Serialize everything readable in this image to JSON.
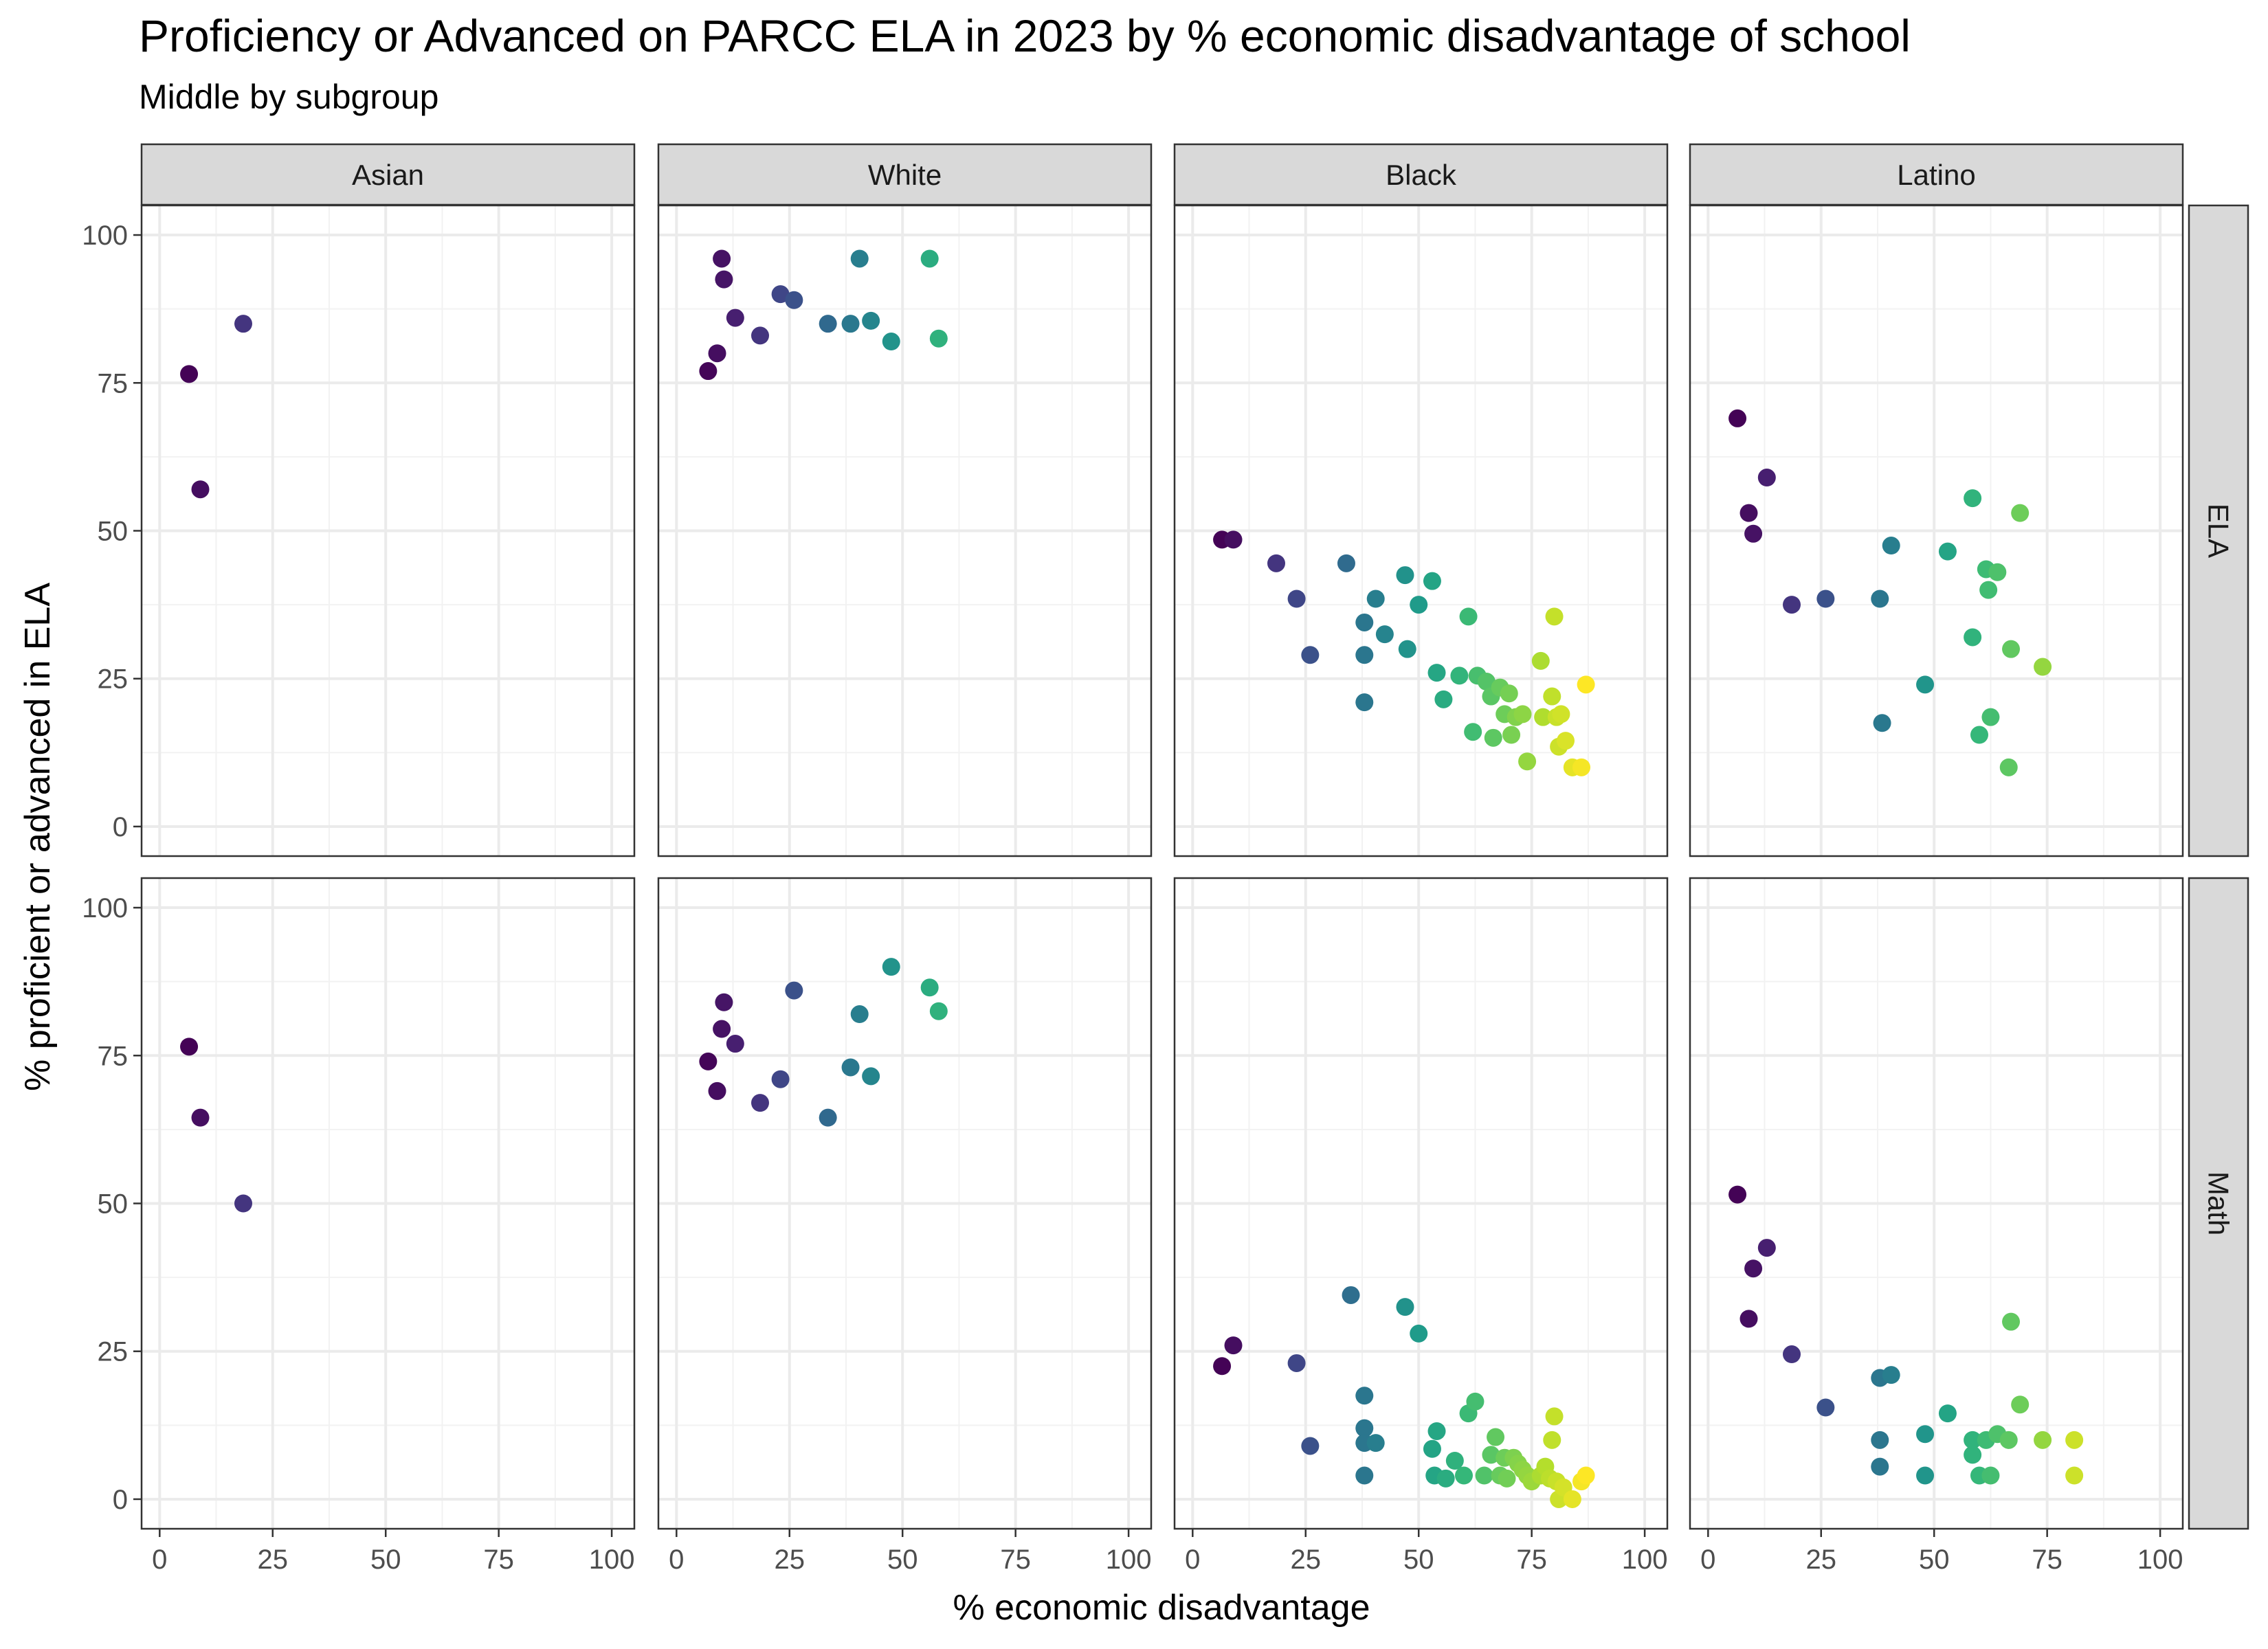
{
  "chart_data": {
    "type": "scatter",
    "title": "Proficiency or Advanced on PARCC ELA in 2023 by % economic disadvantage of school",
    "subtitle": "Middle by subgroup",
    "xlabel": "% economic disadvantage",
    "ylabel": "% proficient or advanced in ELA",
    "xlim": [
      -4,
      105
    ],
    "ylim": [
      -5,
      105
    ],
    "x_ticks": [
      "0",
      "25",
      "50",
      "75",
      "100"
    ],
    "y_ticks": [
      "0",
      "25",
      "50",
      "75",
      "100"
    ],
    "grid": true,
    "color_scale": "viridis by % economic disadvantage",
    "columns": [
      "Asian",
      "White",
      "Black",
      "Latino"
    ],
    "rows": [
      "ELA",
      "Math"
    ],
    "panels": [
      {
        "column": "Asian",
        "row": "ELA",
        "points": [
          [
            6.5,
            76.5
          ],
          [
            9,
            57
          ],
          [
            18.5,
            85
          ]
        ]
      },
      {
        "column": "White",
        "row": "ELA",
        "points": [
          [
            7,
            77
          ],
          [
            9,
            80
          ],
          [
            10,
            96
          ],
          [
            10.5,
            92.5
          ],
          [
            13,
            86
          ],
          [
            18.5,
            83
          ],
          [
            23,
            90
          ],
          [
            26,
            89
          ],
          [
            33.5,
            85
          ],
          [
            38.5,
            85
          ],
          [
            40.5,
            96
          ],
          [
            43,
            85.5
          ],
          [
            47.5,
            82
          ],
          [
            56,
            96
          ],
          [
            58,
            82.5
          ]
        ]
      },
      {
        "column": "Black",
        "row": "ELA",
        "points": [
          [
            6.5,
            48.5
          ],
          [
            9,
            48.5
          ],
          [
            18.5,
            44.5
          ],
          [
            23,
            38.5
          ],
          [
            26,
            29
          ],
          [
            34,
            44.5
          ],
          [
            38,
            34.5
          ],
          [
            38,
            29
          ],
          [
            38,
            21
          ],
          [
            40.5,
            38.5
          ],
          [
            42.5,
            32.5
          ],
          [
            47,
            42.5
          ],
          [
            47.5,
            30
          ],
          [
            50,
            37.5
          ],
          [
            53,
            41.5
          ],
          [
            54,
            26
          ],
          [
            55.5,
            21.5
          ],
          [
            59,
            25.5
          ],
          [
            61,
            35.5
          ],
          [
            62,
            16
          ],
          [
            63,
            25.5
          ],
          [
            65,
            24.5
          ],
          [
            66,
            22
          ],
          [
            66.5,
            15
          ],
          [
            68,
            23.5
          ],
          [
            69,
            19
          ],
          [
            70,
            22.5
          ],
          [
            70.5,
            15.5
          ],
          [
            71.5,
            18.5
          ],
          [
            73,
            19
          ],
          [
            74,
            11
          ],
          [
            77,
            28
          ],
          [
            77.5,
            18.5
          ],
          [
            79.5,
            22
          ],
          [
            80,
            35.5
          ],
          [
            80.5,
            18.5
          ],
          [
            81,
            13.5
          ],
          [
            81.5,
            19
          ],
          [
            82.5,
            14.5
          ],
          [
            84,
            10
          ],
          [
            86,
            10
          ],
          [
            87,
            24
          ]
        ]
      },
      {
        "column": "Latino",
        "row": "ELA",
        "points": [
          [
            6.5,
            69
          ],
          [
            9,
            53
          ],
          [
            10,
            49.5
          ],
          [
            13,
            59
          ],
          [
            18.5,
            37.5
          ],
          [
            26,
            38.5
          ],
          [
            38,
            38.5
          ],
          [
            38.5,
            17.5
          ],
          [
            40.5,
            47.5
          ],
          [
            48,
            24
          ],
          [
            53,
            46.5
          ],
          [
            58.5,
            55.5
          ],
          [
            58.5,
            32
          ],
          [
            60,
            15.5
          ],
          [
            61.5,
            43.5
          ],
          [
            62,
            40
          ],
          [
            62.5,
            18.5
          ],
          [
            64,
            43
          ],
          [
            66.5,
            10
          ],
          [
            67,
            30
          ],
          [
            69,
            53
          ],
          [
            74,
            27
          ]
        ]
      },
      {
        "column": "Asian",
        "row": "Math",
        "points": [
          [
            6.5,
            76.5
          ],
          [
            9,
            64.5
          ],
          [
            18.5,
            50
          ]
        ]
      },
      {
        "column": "White",
        "row": "Math",
        "points": [
          [
            7,
            74
          ],
          [
            9,
            69
          ],
          [
            10,
            79.5
          ],
          [
            10.5,
            84
          ],
          [
            13,
            77
          ],
          [
            18.5,
            67
          ],
          [
            23,
            71
          ],
          [
            26,
            86
          ],
          [
            33.5,
            64.5
          ],
          [
            38.5,
            73
          ],
          [
            40.5,
            82
          ],
          [
            43,
            71.5
          ],
          [
            47.5,
            90
          ],
          [
            56,
            86.5
          ],
          [
            58,
            82.5
          ]
        ]
      },
      {
        "column": "Black",
        "row": "Math",
        "points": [
          [
            6.5,
            22.5
          ],
          [
            9,
            26
          ],
          [
            23,
            23
          ],
          [
            26,
            9
          ],
          [
            35,
            34.5
          ],
          [
            38,
            17.5
          ],
          [
            38,
            12
          ],
          [
            38,
            9.5
          ],
          [
            38,
            4
          ],
          [
            40.5,
            9.5
          ],
          [
            47,
            32.5
          ],
          [
            50,
            28
          ],
          [
            53,
            8.5
          ],
          [
            53.5,
            4
          ],
          [
            54,
            11.5
          ],
          [
            56,
            3.5
          ],
          [
            58,
            6.5
          ],
          [
            60,
            4
          ],
          [
            61,
            14.5
          ],
          [
            62.5,
            16.5
          ],
          [
            64.5,
            4
          ],
          [
            66,
            7.5
          ],
          [
            67,
            10.5
          ],
          [
            68,
            4
          ],
          [
            69,
            7
          ],
          [
            69.5,
            3.5
          ],
          [
            71,
            7
          ],
          [
            72,
            6
          ],
          [
            73,
            5
          ],
          [
            74,
            4
          ],
          [
            75,
            3
          ],
          [
            77,
            4
          ],
          [
            78,
            5.5
          ],
          [
            79,
            3.5
          ],
          [
            79.5,
            10
          ],
          [
            80,
            14
          ],
          [
            80.5,
            3
          ],
          [
            81,
            0
          ],
          [
            82,
            2
          ],
          [
            84,
            0
          ],
          [
            86,
            3
          ],
          [
            87,
            4
          ]
        ]
      },
      {
        "column": "Latino",
        "row": "Math",
        "points": [
          [
            6.5,
            51.5
          ],
          [
            9,
            30.5
          ],
          [
            10,
            39
          ],
          [
            13,
            42.5
          ],
          [
            18.5,
            24.5
          ],
          [
            26,
            15.5
          ],
          [
            38,
            20.5
          ],
          [
            38,
            10
          ],
          [
            38,
            5.5
          ],
          [
            40.5,
            21
          ],
          [
            48,
            11
          ],
          [
            48,
            4
          ],
          [
            53,
            14.5
          ],
          [
            58.5,
            10
          ],
          [
            58.5,
            7.5
          ],
          [
            60,
            4
          ],
          [
            61.5,
            10
          ],
          [
            62.5,
            4
          ],
          [
            64,
            11
          ],
          [
            66.5,
            10
          ],
          [
            67,
            30
          ],
          [
            69,
            16
          ],
          [
            74,
            10
          ],
          [
            81,
            10
          ],
          [
            81,
            4
          ]
        ]
      }
    ]
  }
}
